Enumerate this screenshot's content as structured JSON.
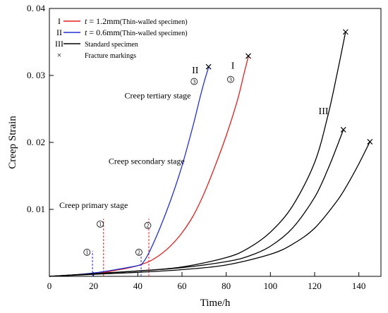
{
  "chart_data": {
    "type": "line",
    "xlabel": "Time/h",
    "ylabel": "Creep Strain",
    "xlim": [
      0,
      150
    ],
    "ylim": [
      0,
      0.04
    ],
    "xticks": [
      0,
      20,
      40,
      60,
      80,
      100,
      120,
      140
    ],
    "xtick_labels": [
      "0",
      "20",
      "40",
      "60",
      "80",
      "100",
      "120",
      "140"
    ],
    "yticks": [
      0,
      0.01,
      0.02,
      0.03,
      0.04
    ],
    "ytick_labels": [
      "",
      "0. 01",
      "0. 02",
      "0. 03",
      "0. 04"
    ],
    "legend": {
      "position": "top-left",
      "entries": [
        {
          "label_prefix": "I",
          "italic": "t",
          "label_main": " = 1.2mm",
          "label_note": "(Thin-walled specimen)",
          "color": "#e02020",
          "marker": "line"
        },
        {
          "label_prefix": "II",
          "italic": "t",
          "label_main": " = 0.6mm",
          "label_note": "(Thin-walled specimen)",
          "color": "#2030d0",
          "marker": "line"
        },
        {
          "label_prefix": "III",
          "italic": "",
          "label_main": "",
          "label_note": "Standard specimen",
          "color": "#000000",
          "marker": "line"
        },
        {
          "label_prefix": "×",
          "italic": "",
          "label_main": "",
          "label_note": "Fracture markings",
          "color": "#000000",
          "marker": "none"
        }
      ]
    },
    "series": [
      {
        "color": "#e02020",
        "x": [
          0,
          10,
          20,
          25,
          30,
          35,
          40,
          45,
          50,
          55,
          60,
          65,
          70,
          75,
          80,
          85,
          88,
          90
        ],
        "y": [
          0,
          0.0002,
          0.0004,
          0.0006,
          0.0009,
          0.0012,
          0.0016,
          0.0022,
          0.0032,
          0.0046,
          0.0065,
          0.009,
          0.0124,
          0.0165,
          0.021,
          0.0262,
          0.0302,
          0.0328
        ]
      },
      {
        "color": "#2030d0",
        "x": [
          0,
          10,
          20,
          30,
          40,
          42,
          45,
          50,
          55,
          60,
          65,
          68,
          70,
          72
        ],
        "y": [
          0,
          0.0002,
          0.0005,
          0.001,
          0.0016,
          0.0019,
          0.0035,
          0.0072,
          0.0115,
          0.0165,
          0.0225,
          0.0265,
          0.029,
          0.0312
        ]
      },
      {
        "color": "#000000",
        "x": [
          0,
          20,
          40,
          60,
          80,
          90,
          100,
          110,
          120,
          126,
          130,
          134
        ],
        "y": [
          0,
          0.0004,
          0.0008,
          0.0014,
          0.0028,
          0.0042,
          0.0066,
          0.0105,
          0.017,
          0.024,
          0.03,
          0.0365
        ]
      },
      {
        "color": "#000000",
        "x": [
          0,
          20,
          40,
          60,
          80,
          90,
          100,
          110,
          120,
          126,
          130,
          133
        ],
        "y": [
          0,
          0.0004,
          0.0008,
          0.0013,
          0.0022,
          0.003,
          0.0045,
          0.0072,
          0.0118,
          0.016,
          0.0193,
          0.0219
        ]
      },
      {
        "color": "#000000",
        "x": [
          0,
          20,
          40,
          60,
          80,
          100,
          110,
          120,
          130,
          135,
          140,
          145
        ],
        "y": [
          0,
          0.0003,
          0.0006,
          0.001,
          0.0017,
          0.0033,
          0.0048,
          0.0072,
          0.0112,
          0.0138,
          0.0168,
          0.0201
        ]
      }
    ],
    "fracture_markers": [
      {
        "x": 90,
        "y": 0.0329
      },
      {
        "x": 72,
        "y": 0.0313
      },
      {
        "x": 134,
        "y": 0.0365
      },
      {
        "x": 133,
        "y": 0.0219
      },
      {
        "x": 145,
        "y": 0.0201
      }
    ],
    "series_labels": [
      {
        "text": "I",
        "x": 83,
        "y": 0.031
      },
      {
        "text": "II",
        "x": 66,
        "y": 0.0303
      },
      {
        "text": "III",
        "x": 124,
        "y": 0.0242
      }
    ],
    "stage_labels": [
      {
        "text": "Creep primary stage",
        "x": 20,
        "y": 0.0102
      },
      {
        "text": "Creep secondary stage",
        "x": 44,
        "y": 0.0168
      },
      {
        "text": "Creep tertiary stage",
        "x": 49,
        "y": 0.0266
      }
    ],
    "stage_lines": [
      {
        "x": 19.5,
        "y_top": 0.0038,
        "color": "#2030d0"
      },
      {
        "x": 24.5,
        "y_top": 0.0086,
        "color": "#e02020"
      },
      {
        "x": 41.5,
        "y_top": 0.0038,
        "color": "#2030d0"
      },
      {
        "x": 45,
        "y_top": 0.0086,
        "color": "#e02020"
      }
    ],
    "circled_markers": [
      {
        "text": "1",
        "x": 17,
        "y": 0.0036
      },
      {
        "text": "1",
        "x": 23,
        "y": 0.0078
      },
      {
        "text": "2",
        "x": 40.5,
        "y": 0.0036
      },
      {
        "text": "2",
        "x": 44.5,
        "y": 0.0076
      },
      {
        "text": "3",
        "x": 65.5,
        "y": 0.0291
      },
      {
        "text": "3",
        "x": 82,
        "y": 0.0294
      }
    ]
  }
}
